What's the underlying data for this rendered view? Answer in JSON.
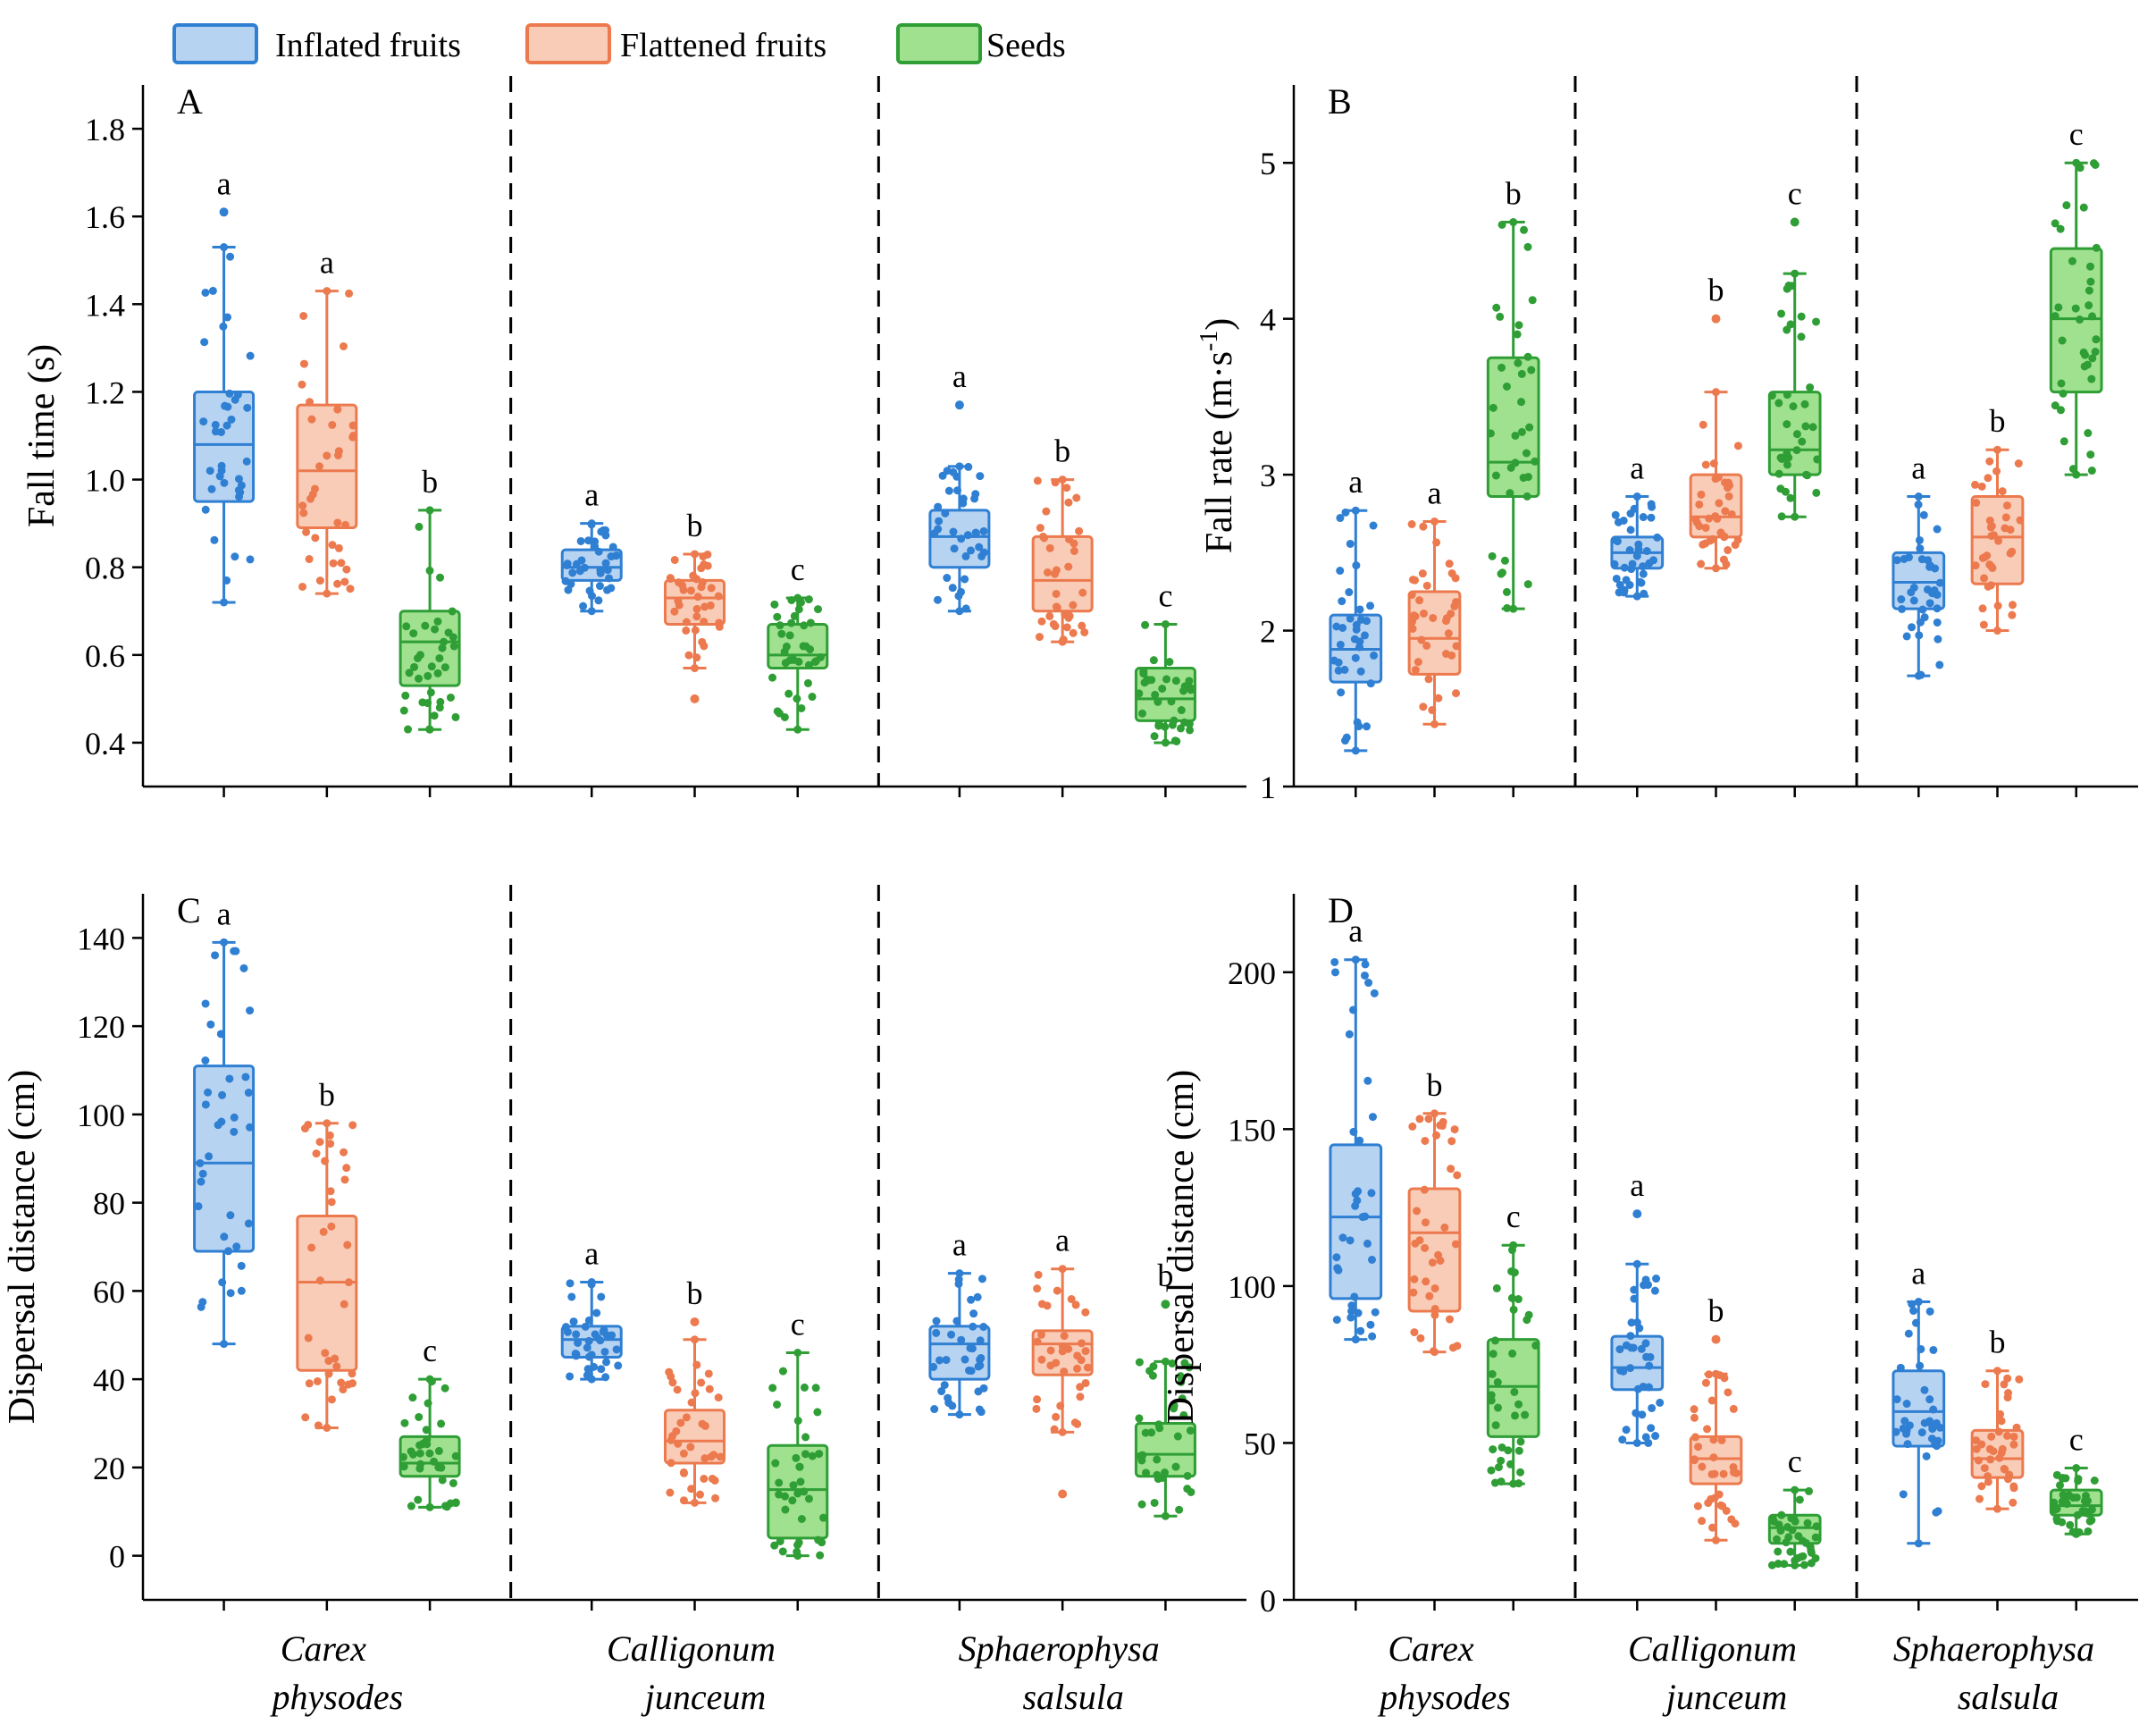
{
  "legend": {
    "items": [
      {
        "label": "Inflated fruits",
        "color": "#2f7fd3",
        "fill": "#b7d3f2"
      },
      {
        "label": "Flattened fruits",
        "color": "#ec7a4e",
        "fill": "#f9ccb8"
      },
      {
        "label": "Seeds",
        "color": "#2e9e35",
        "fill": "#9fe18f"
      }
    ]
  },
  "chart_data": [
    {
      "type": "box",
      "panel_label": "A",
      "ylabel": "Fall time (s)",
      "ylabel_sup": "",
      "ylabel_tail": "",
      "ylim": [
        0.3,
        1.9
      ],
      "yticks": [
        "0.4",
        "0.6",
        "0.8",
        "1.0",
        "1.2",
        "1.4",
        "1.6",
        "1.8"
      ],
      "categories": [
        [
          "Carex",
          "physodes"
        ],
        [
          "Calligonum",
          "junceum"
        ],
        [
          "Sphaerophysa",
          "salsula"
        ]
      ],
      "series_names": [
        "Inflated fruits",
        "Flattened fruits",
        "Seeds"
      ],
      "groups": [
        [
          {
            "min": 0.72,
            "q1": 0.95,
            "median": 1.08,
            "q3": 1.2,
            "max": 1.53,
            "outliers": [
              1.61
            ],
            "letter": "a"
          },
          {
            "min": 0.74,
            "q1": 0.89,
            "median": 1.02,
            "q3": 1.17,
            "max": 1.43,
            "outliers": [],
            "letter": "a"
          },
          {
            "min": 0.43,
            "q1": 0.53,
            "median": 0.63,
            "q3": 0.7,
            "max": 0.93,
            "outliers": [],
            "letter": "b"
          }
        ],
        [
          {
            "min": 0.7,
            "q1": 0.77,
            "median": 0.8,
            "q3": 0.84,
            "max": 0.9,
            "outliers": [],
            "letter": "a"
          },
          {
            "min": 0.57,
            "q1": 0.67,
            "median": 0.73,
            "q3": 0.77,
            "max": 0.83,
            "outliers": [
              0.5
            ],
            "letter": "b"
          },
          {
            "min": 0.43,
            "q1": 0.57,
            "median": 0.6,
            "q3": 0.67,
            "max": 0.73,
            "outliers": [],
            "letter": "c"
          }
        ],
        [
          {
            "min": 0.7,
            "q1": 0.8,
            "median": 0.87,
            "q3": 0.93,
            "max": 1.03,
            "outliers": [
              1.17
            ],
            "letter": "a"
          },
          {
            "min": 0.63,
            "q1": 0.7,
            "median": 0.77,
            "q3": 0.87,
            "max": 1.0,
            "outliers": [],
            "letter": "b"
          },
          {
            "min": 0.4,
            "q1": 0.45,
            "median": 0.5,
            "q3": 0.57,
            "max": 0.67,
            "outliers": [],
            "letter": "c"
          }
        ]
      ]
    },
    {
      "type": "box",
      "panel_label": "B",
      "ylabel": "Fall rate (m·s",
      "ylabel_sup": "-1",
      "ylabel_tail": ")",
      "ylim": [
        1,
        5.5
      ],
      "yticks": [
        "1",
        "2",
        "3",
        "4",
        "5"
      ],
      "categories": [
        [
          "Carex",
          "physodes"
        ],
        [
          "Calligonum",
          "junceum"
        ],
        [
          "Sphaerophysa",
          "salsula"
        ]
      ],
      "series_names": [
        "Inflated fruits",
        "Flattened fruits",
        "Seeds"
      ],
      "groups": [
        [
          {
            "min": 1.23,
            "q1": 1.67,
            "median": 1.88,
            "q3": 2.1,
            "max": 2.77,
            "outliers": [],
            "letter": "a"
          },
          {
            "min": 1.4,
            "q1": 1.72,
            "median": 1.95,
            "q3": 2.25,
            "max": 2.7,
            "outliers": [],
            "letter": "a"
          },
          {
            "min": 2.14,
            "q1": 2.86,
            "median": 3.08,
            "q3": 3.75,
            "max": 4.62,
            "outliers": [],
            "letter": "b"
          }
        ],
        [
          {
            "min": 2.22,
            "q1": 2.4,
            "median": 2.5,
            "q3": 2.6,
            "max": 2.86,
            "outliers": [],
            "letter": "a"
          },
          {
            "min": 2.4,
            "q1": 2.6,
            "median": 2.73,
            "q3": 3.0,
            "max": 3.53,
            "outliers": [
              4.0
            ],
            "letter": "b"
          },
          {
            "min": 2.73,
            "q1": 3.0,
            "median": 3.16,
            "q3": 3.53,
            "max": 4.29,
            "outliers": [
              4.62
            ],
            "letter": "c"
          }
        ],
        [
          {
            "min": 1.71,
            "q1": 2.14,
            "median": 2.31,
            "q3": 2.5,
            "max": 2.86,
            "outliers": [],
            "letter": "a"
          },
          {
            "min": 2.0,
            "q1": 2.3,
            "median": 2.6,
            "q3": 2.86,
            "max": 3.16,
            "outliers": [],
            "letter": "b"
          },
          {
            "min": 3.0,
            "q1": 3.53,
            "median": 4.0,
            "q3": 4.45,
            "max": 5.0,
            "outliers": [],
            "letter": "c"
          }
        ]
      ]
    },
    {
      "type": "box",
      "panel_label": "C",
      "ylabel": "Dispersal distance (cm)",
      "ylabel_sup": "",
      "ylabel_tail": "",
      "ylim": [
        -10,
        150
      ],
      "yticks": [
        "0",
        "20",
        "40",
        "60",
        "80",
        "100",
        "120",
        "140"
      ],
      "categories": [
        [
          "Carex",
          "physodes"
        ],
        [
          "Calligonum",
          "junceum"
        ],
        [
          "Sphaerophysa",
          "salsula"
        ]
      ],
      "series_names": [
        "Inflated fruits",
        "Flattened fruits",
        "Seeds"
      ],
      "groups": [
        [
          {
            "min": 48,
            "q1": 69,
            "median": 89,
            "q3": 111,
            "max": 139,
            "outliers": [],
            "letter": "a"
          },
          {
            "min": 29,
            "q1": 42,
            "median": 62,
            "q3": 77,
            "max": 98,
            "outliers": [],
            "letter": "b"
          },
          {
            "min": 11,
            "q1": 18,
            "median": 21,
            "q3": 27,
            "max": 40,
            "outliers": [],
            "letter": "c"
          }
        ],
        [
          {
            "min": 40,
            "q1": 45,
            "median": 49,
            "q3": 52,
            "max": 62,
            "outliers": [],
            "letter": "a"
          },
          {
            "min": 12,
            "q1": 21,
            "median": 26,
            "q3": 33,
            "max": 49,
            "outliers": [
              53
            ],
            "letter": "b"
          },
          {
            "min": 0,
            "q1": 4,
            "median": 15,
            "q3": 25,
            "max": 46,
            "outliers": [],
            "letter": "c"
          }
        ],
        [
          {
            "min": 32,
            "q1": 40,
            "median": 48,
            "q3": 52,
            "max": 64,
            "outliers": [],
            "letter": "a"
          },
          {
            "min": 28,
            "q1": 41,
            "median": 48,
            "q3": 51,
            "max": 65,
            "outliers": [
              14
            ],
            "letter": "a"
          },
          {
            "min": 9,
            "q1": 18,
            "median": 23,
            "q3": 30,
            "max": 44,
            "outliers": [
              57
            ],
            "letter": "b"
          }
        ]
      ]
    },
    {
      "type": "box",
      "panel_label": "D",
      "ylabel": "Dispersal distance (cm)",
      "ylabel_sup": "",
      "ylabel_tail": "",
      "ylim": [
        0,
        225
      ],
      "yticks": [
        "0",
        "50",
        "100",
        "150",
        "200"
      ],
      "categories": [
        [
          "Carex",
          "physodes"
        ],
        [
          "Calligonum",
          "junceum"
        ],
        [
          "Sphaerophysa",
          "salsula"
        ]
      ],
      "series_names": [
        "Inflated fruits",
        "Flattened fruits",
        "Seeds"
      ],
      "groups": [
        [
          {
            "min": 83,
            "q1": 96,
            "median": 122,
            "q3": 145,
            "max": 204,
            "outliers": [],
            "letter": "a"
          },
          {
            "min": 79,
            "q1": 92,
            "median": 117,
            "q3": 131,
            "max": 155,
            "outliers": [],
            "letter": "b"
          },
          {
            "min": 37,
            "q1": 52,
            "median": 68,
            "q3": 83,
            "max": 113,
            "outliers": [],
            "letter": "c"
          }
        ],
        [
          {
            "min": 50,
            "q1": 67,
            "median": 74,
            "q3": 84,
            "max": 107,
            "outliers": [
              123
            ],
            "letter": "a"
          },
          {
            "min": 19,
            "q1": 37,
            "median": 45,
            "q3": 52,
            "max": 72,
            "outliers": [
              83
            ],
            "letter": "b"
          },
          {
            "min": 11,
            "q1": 18,
            "median": 23,
            "q3": 27,
            "max": 35,
            "outliers": [],
            "letter": "c"
          }
        ],
        [
          {
            "min": 18,
            "q1": 49,
            "median": 60,
            "q3": 73,
            "max": 95,
            "outliers": [],
            "letter": "a"
          },
          {
            "min": 29,
            "q1": 39,
            "median": 45,
            "q3": 54,
            "max": 73,
            "outliers": [],
            "letter": "b"
          },
          {
            "min": 21,
            "q1": 27,
            "median": 30,
            "q3": 35,
            "max": 42,
            "outliers": [],
            "letter": "c"
          }
        ]
      ]
    }
  ]
}
